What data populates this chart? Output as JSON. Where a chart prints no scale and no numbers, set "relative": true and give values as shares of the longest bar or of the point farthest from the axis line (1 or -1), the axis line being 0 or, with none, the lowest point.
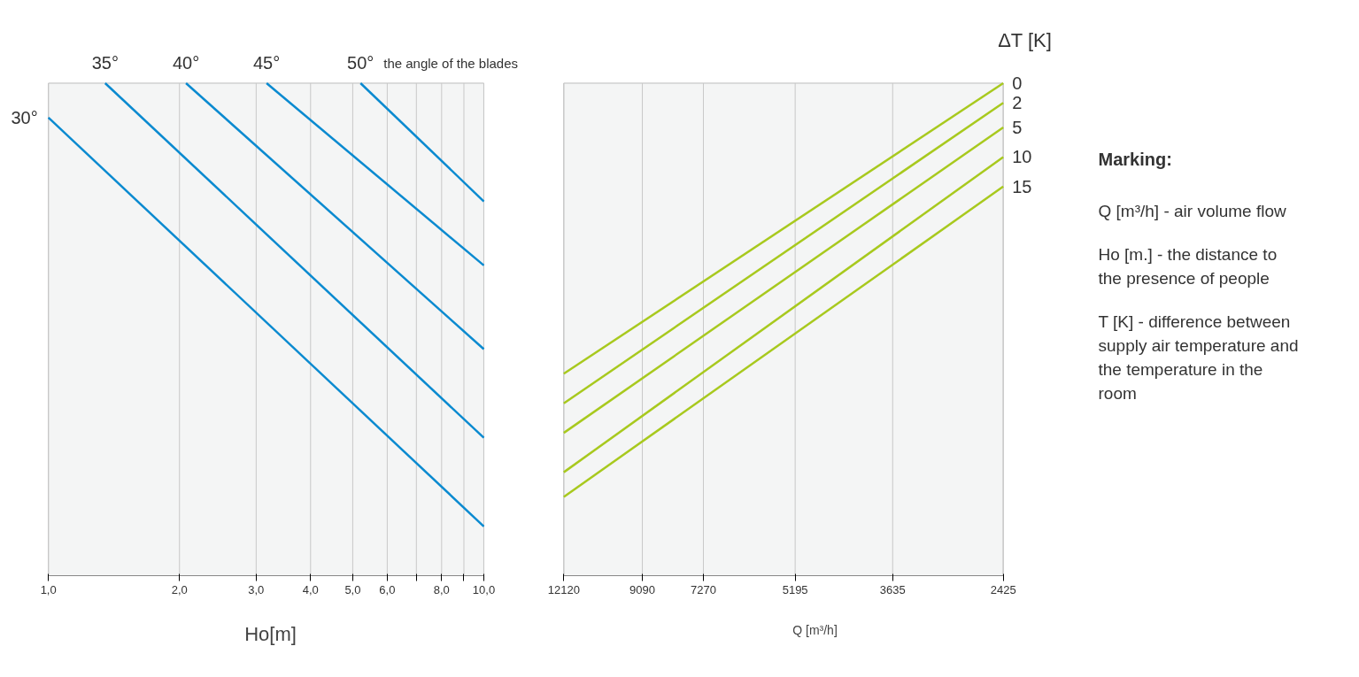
{
  "chart_data": [
    {
      "type": "line",
      "relative": true,
      "log": "x",
      "xlabel": "Ho[m]",
      "xlim": [
        1,
        10
      ],
      "xticks": [
        {
          "value": 1,
          "label": "1,0"
        },
        {
          "value": 2,
          "label": "2,0"
        },
        {
          "value": 3,
          "label": "3,0"
        },
        {
          "value": 4,
          "label": "4,0"
        },
        {
          "value": 5,
          "label": "5,0"
        },
        {
          "value": 6,
          "label": "6,0"
        },
        {
          "value": 7,
          "label": null
        },
        {
          "value": 8,
          "label": "8,0"
        },
        {
          "value": 9,
          "label": null
        },
        {
          "value": 10,
          "label": "10,0"
        }
      ],
      "grid": "x",
      "annotations": [
        "the angle of the blades"
      ],
      "series": [
        {
          "name": "30°",
          "color": "#0a8ad0",
          "x": [
            1,
            10
          ],
          "values": [
            0.93,
            0.1
          ]
        },
        {
          "name": "35°",
          "color": "#0a8ad0",
          "x": [
            1.35,
            10
          ],
          "values": [
            1,
            0.28
          ]
        },
        {
          "name": "40°",
          "color": "#0a8ad0",
          "x": [
            2.07,
            10
          ],
          "values": [
            1,
            0.46
          ]
        },
        {
          "name": "45°",
          "color": "#0a8ad0",
          "x": [
            3.17,
            10
          ],
          "values": [
            1,
            0.63
          ]
        },
        {
          "name": "50°",
          "color": "#0a8ad0",
          "x": [
            5.21,
            10
          ],
          "values": [
            1,
            0.76
          ]
        }
      ]
    },
    {
      "type": "line",
      "relative": true,
      "log": "x",
      "xlabel": "Q [m³/h]",
      "legend_title": "ΔT [K]",
      "xlim": [
        12120,
        2425
      ],
      "xticks": [
        12120,
        9090,
        7270,
        5195,
        3635,
        2425
      ],
      "grid": "x",
      "series": [
        {
          "name": "0",
          "color": "#a8c91e",
          "x": [
            12120,
            2425
          ],
          "values": [
            0.41,
            1
          ]
        },
        {
          "name": "2",
          "color": "#a8c91e",
          "x": [
            12120,
            2425
          ],
          "values": [
            0.35,
            0.96
          ]
        },
        {
          "name": "5",
          "color": "#a8c91e",
          "x": [
            12120,
            2425
          ],
          "values": [
            0.29,
            0.91
          ]
        },
        {
          "name": "10",
          "color": "#a8c91e",
          "x": [
            12120,
            2425
          ],
          "values": [
            0.21,
            0.85
          ]
        },
        {
          "name": "15",
          "color": "#a8c91e",
          "x": [
            12120,
            2425
          ],
          "values": [
            0.16,
            0.79
          ]
        }
      ]
    },
    {
      "type": "other",
      "title": "Marking:",
      "annotations": [
        "Q [m³/h] - air volume flow",
        "Ho [m.] - the distance to the presence of people",
        "T [K] - difference between supply air temperature and the temperature in the room"
      ]
    }
  ]
}
